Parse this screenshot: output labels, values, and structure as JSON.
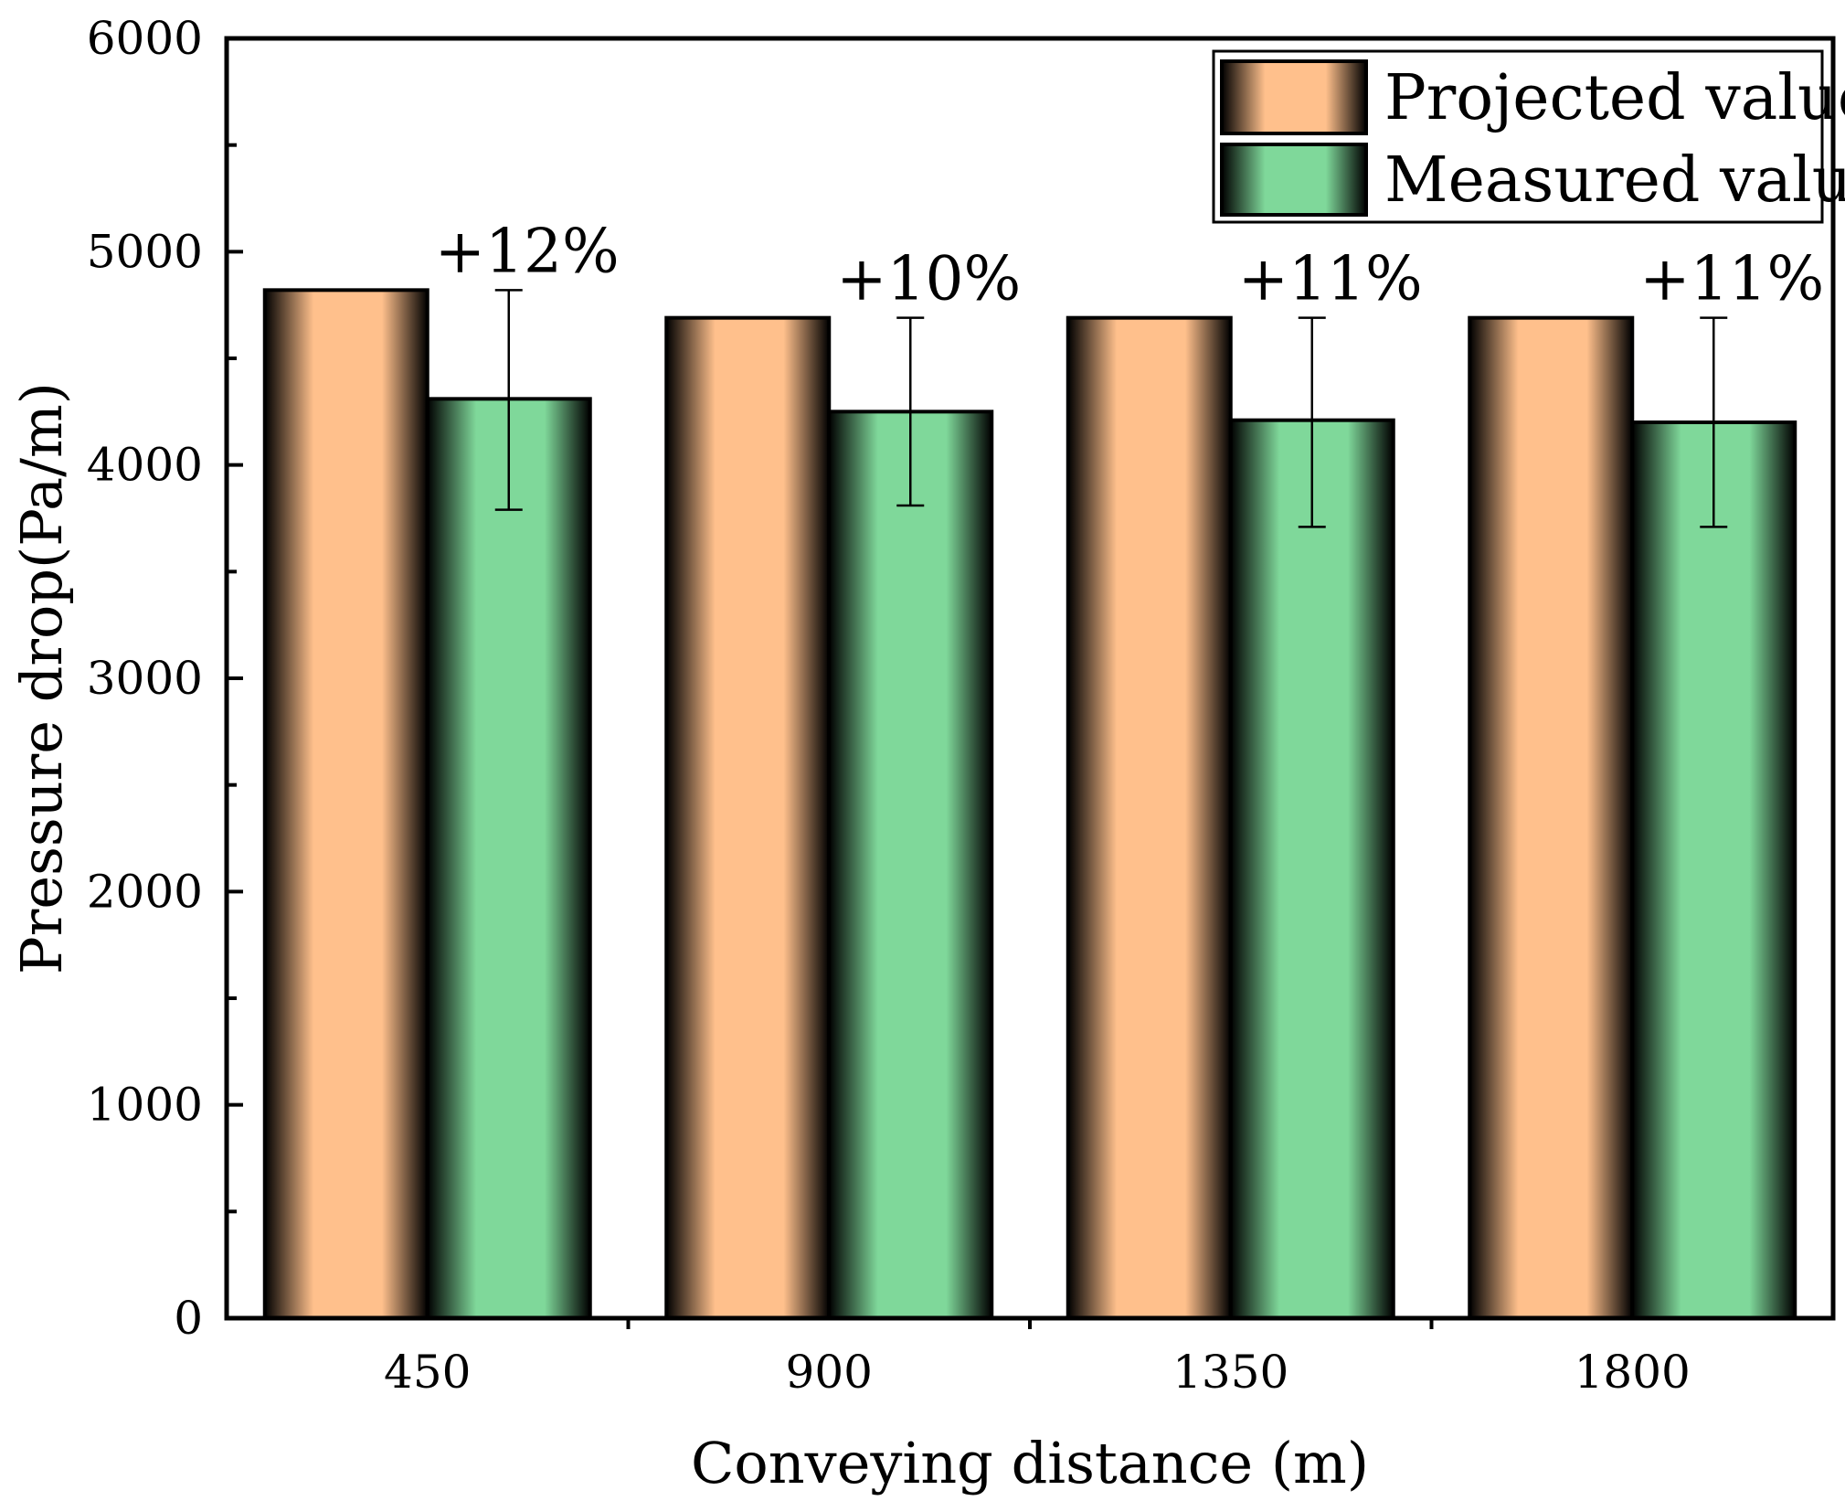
{
  "chart_data": {
    "type": "bar",
    "title": "",
    "xlabel": "Conveying distance (m)",
    "ylabel": "Pressure drop(Pa/m)",
    "categories": [
      "450",
      "900",
      "1350",
      "1800"
    ],
    "ylim": [
      0,
      6000
    ],
    "yticks": [
      "0",
      "1000",
      "2000",
      "3000",
      "4000",
      "5000",
      "6000"
    ],
    "series": [
      {
        "name": "Projected value",
        "values": [
          4820,
          4690,
          4690,
          4690
        ],
        "color": "#FFC08C",
        "edge_color": "#1a1008"
      },
      {
        "name": "Measured value",
        "values": [
          4310,
          4250,
          4210,
          4200
        ],
        "color": "#7FD89A",
        "edge_color": "#0e2a18",
        "error_bars": {
          "lower": [
            3790,
            3810,
            3710,
            3710
          ],
          "upper": [
            4820,
            4690,
            4690,
            4690
          ]
        }
      }
    ],
    "annotations": [
      "+12%",
      "+10%",
      "+11%",
      "+11%"
    ],
    "legend_position": "top-right",
    "grid": false
  }
}
